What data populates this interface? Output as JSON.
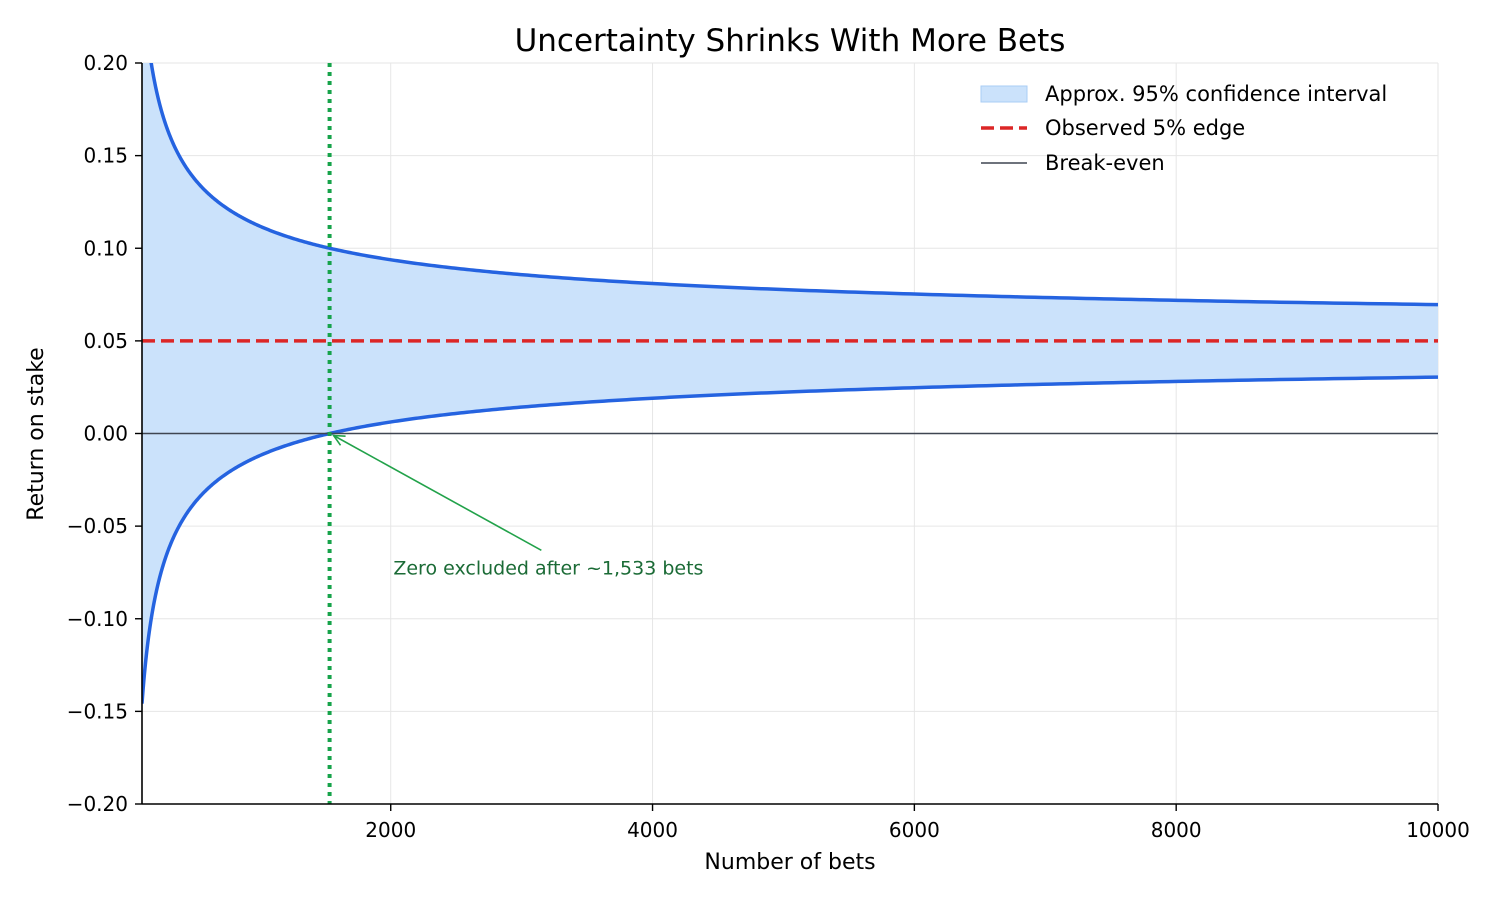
{
  "chart_data": {
    "type": "line",
    "title": "Uncertainty Shrinks With More Bets",
    "xlabel": "Number of bets",
    "ylabel": "Return on stake",
    "xlim": [
      100,
      10000
    ],
    "ylim": [
      -0.2,
      0.2
    ],
    "x_ticks": [
      2000,
      4000,
      6000,
      8000,
      10000
    ],
    "x_tick_labels": [
      "2000",
      "4000",
      "6000",
      "8000",
      "10000"
    ],
    "y_ticks": [
      -0.2,
      -0.15,
      -0.1,
      -0.05,
      0.0,
      0.05,
      0.1,
      0.15,
      0.2
    ],
    "y_tick_labels": [
      "−0.20",
      "−0.15",
      "−0.10",
      "−0.05",
      "0.00",
      "0.05",
      "0.10",
      "0.15",
      "0.20"
    ],
    "grid": true,
    "legend_position": "top-right",
    "observed_edge": 0.05,
    "ci_half_width_coefficient": 1.958,
    "series": [
      {
        "name": "Approx. 95% confidence interval",
        "kind": "band",
        "color": "#cbe2fb",
        "edge_color": "#2563e0"
      },
      {
        "name": "Observed 5% edge",
        "kind": "hline",
        "y": 0.05,
        "color": "#dc2626",
        "style": "dashed"
      },
      {
        "name": "Break-even",
        "kind": "hline",
        "y": 0.0,
        "color": "#3f4551",
        "style": "solid"
      }
    ],
    "vline": {
      "x": 1533,
      "color": "#16a34a",
      "style": "dotted"
    },
    "annotation": {
      "text": "Zero excluded after ~1,533 bets",
      "point": [
        1533,
        0.0
      ],
      "text_at": [
        2020,
        -0.076
      ],
      "color": "#1b6b36",
      "arrow_color": "#22a24a"
    }
  }
}
